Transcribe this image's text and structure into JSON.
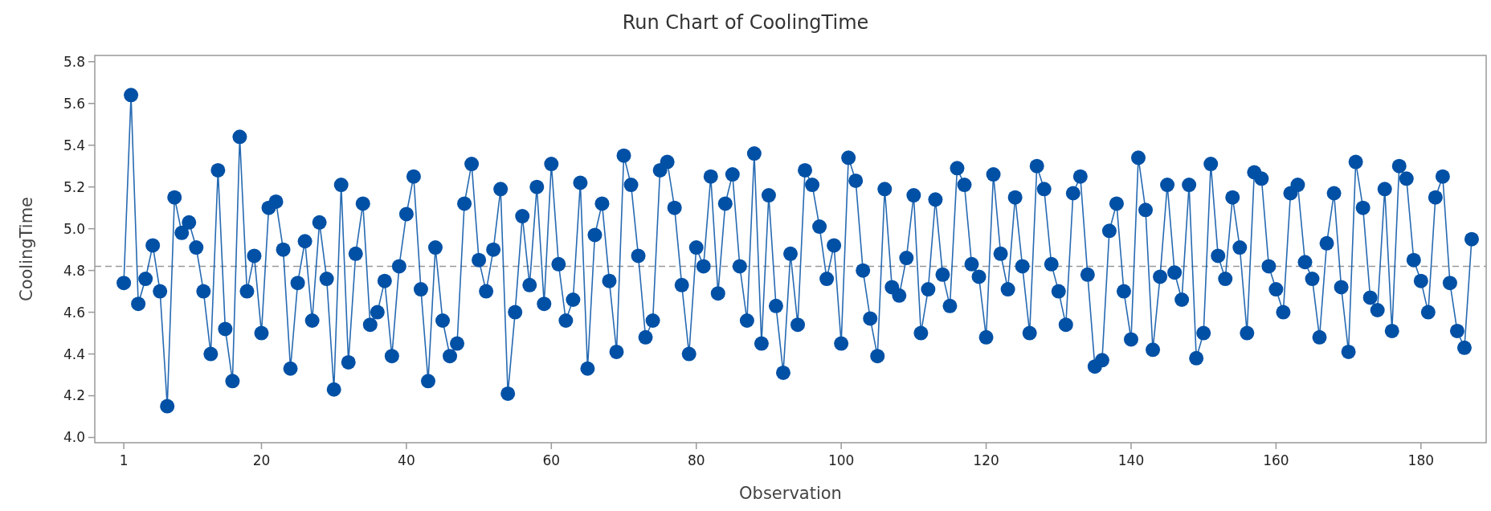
{
  "chart_data": {
    "type": "line",
    "title": "Run Chart of CoolingTime",
    "xlabel": "Observation",
    "ylabel": "CoolingTime",
    "x": [
      1,
      2,
      3,
      4,
      5,
      6,
      7,
      8,
      9,
      10,
      11,
      12,
      13,
      14,
      15,
      16,
      17,
      18,
      19,
      20,
      21,
      22,
      23,
      24,
      25,
      26,
      27,
      28,
      29,
      30,
      31,
      32,
      33,
      34,
      35,
      36,
      37,
      38,
      39,
      40,
      41,
      42,
      43,
      44,
      45,
      46,
      47,
      48,
      49,
      50,
      51,
      52,
      53,
      54,
      55,
      56,
      57,
      58,
      59,
      60,
      61,
      62,
      63,
      64,
      65,
      66,
      67,
      68,
      69,
      70,
      71,
      72,
      73,
      74,
      75,
      76,
      77,
      78,
      79,
      80,
      81,
      82,
      83,
      84,
      85,
      86,
      87,
      88,
      89,
      90,
      91,
      92,
      93,
      94,
      95,
      96,
      97,
      98,
      99,
      100,
      101,
      102,
      103,
      104,
      105,
      106,
      107,
      108,
      109,
      110,
      111,
      112,
      113,
      114,
      115,
      116,
      117,
      118,
      119,
      120,
      121,
      122,
      123,
      124,
      125,
      126,
      127,
      128,
      129,
      130,
      131,
      132,
      133,
      134,
      135,
      136,
      137,
      138,
      139,
      140,
      141,
      142,
      143,
      144,
      145,
      146,
      147,
      148,
      149,
      150,
      151,
      152,
      153,
      154,
      155,
      156,
      157,
      158,
      159,
      160,
      161,
      162,
      163,
      164,
      165,
      166,
      167,
      168,
      169,
      170,
      171,
      172,
      173,
      174,
      175,
      176,
      177,
      178,
      179,
      180,
      181,
      182,
      183,
      184,
      185,
      186,
      187
    ],
    "series": [
      {
        "color": "#0050a5",
        "values": [
          4.74,
          5.64,
          4.64,
          4.76,
          4.92,
          4.7,
          4.15,
          5.15,
          4.98,
          5.03,
          4.91,
          4.7,
          4.4,
          5.28,
          4.52,
          4.27,
          5.44,
          4.7,
          4.87,
          4.5,
          5.1,
          5.13,
          4.9,
          4.33,
          4.74,
          4.94,
          4.56,
          5.03,
          4.76,
          4.23,
          5.21,
          4.36,
          4.88,
          5.12,
          4.54,
          4.6,
          4.75,
          4.39,
          4.82,
          5.07,
          5.25,
          4.71,
          4.27,
          4.91,
          4.56,
          4.39,
          4.45,
          5.12,
          5.31,
          4.85,
          4.7,
          4.9,
          5.19,
          4.21,
          4.6,
          5.06,
          4.73,
          5.2,
          4.64,
          5.31,
          4.83,
          4.56,
          4.66,
          5.22,
          4.33,
          4.97,
          5.12,
          4.75,
          4.41,
          5.35,
          5.21,
          4.87,
          4.48,
          4.56,
          5.28,
          5.32,
          5.1,
          4.73,
          4.4,
          4.91,
          4.82,
          5.25,
          4.69,
          5.12,
          5.26,
          4.82,
          4.56,
          5.36,
          4.45,
          5.16,
          4.63,
          4.31,
          4.88,
          4.54,
          5.28,
          5.21,
          5.01,
          4.76,
          4.92,
          4.45,
          5.34,
          5.23,
          4.8,
          4.57,
          4.39,
          5.19,
          4.72,
          4.68,
          4.86,
          5.16,
          4.5,
          4.71,
          5.14,
          4.78,
          4.63,
          5.29,
          5.21,
          4.83,
          4.77,
          4.48,
          5.26,
          4.88,
          4.71,
          5.15,
          4.82,
          4.5,
          5.3,
          5.19,
          4.83,
          4.7,
          4.54,
          5.17,
          5.25,
          4.78,
          4.34,
          4.37,
          4.99,
          5.12,
          4.7,
          4.47,
          5.34,
          5.09,
          4.42,
          4.77,
          5.21,
          4.79,
          4.66,
          5.21,
          4.38,
          4.5,
          5.31,
          4.87,
          4.76,
          5.15,
          4.91,
          4.5,
          5.27,
          5.24,
          4.82,
          4.71,
          4.6,
          5.17,
          5.21,
          4.84,
          4.76,
          4.48,
          4.93,
          5.17,
          4.72,
          4.41,
          5.32,
          5.1,
          4.67,
          4.61,
          5.19,
          4.51,
          5.3,
          5.24,
          4.85,
          4.75,
          4.6,
          5.15,
          5.25,
          4.74,
          4.51,
          4.43,
          4.95
        ]
      }
    ],
    "xlim": [
      -3,
      189
    ],
    "ylim": [
      3.975,
      5.83
    ],
    "xticks": [
      1,
      20,
      40,
      60,
      80,
      100,
      120,
      140,
      160,
      180
    ],
    "yticks": [
      {
        "value": 4,
        "label": "4.0"
      },
      4.2,
      4.4,
      4.6,
      4.8,
      {
        "value": 5,
        "label": "5.0"
      },
      5.2,
      5.4,
      5.6,
      5.8
    ],
    "ref_lines": [
      {
        "axis": "y",
        "value": 4.82,
        "color": "#999999",
        "line_style": "dashed"
      }
    ],
    "marker": "circle",
    "line_style": "solid"
  }
}
